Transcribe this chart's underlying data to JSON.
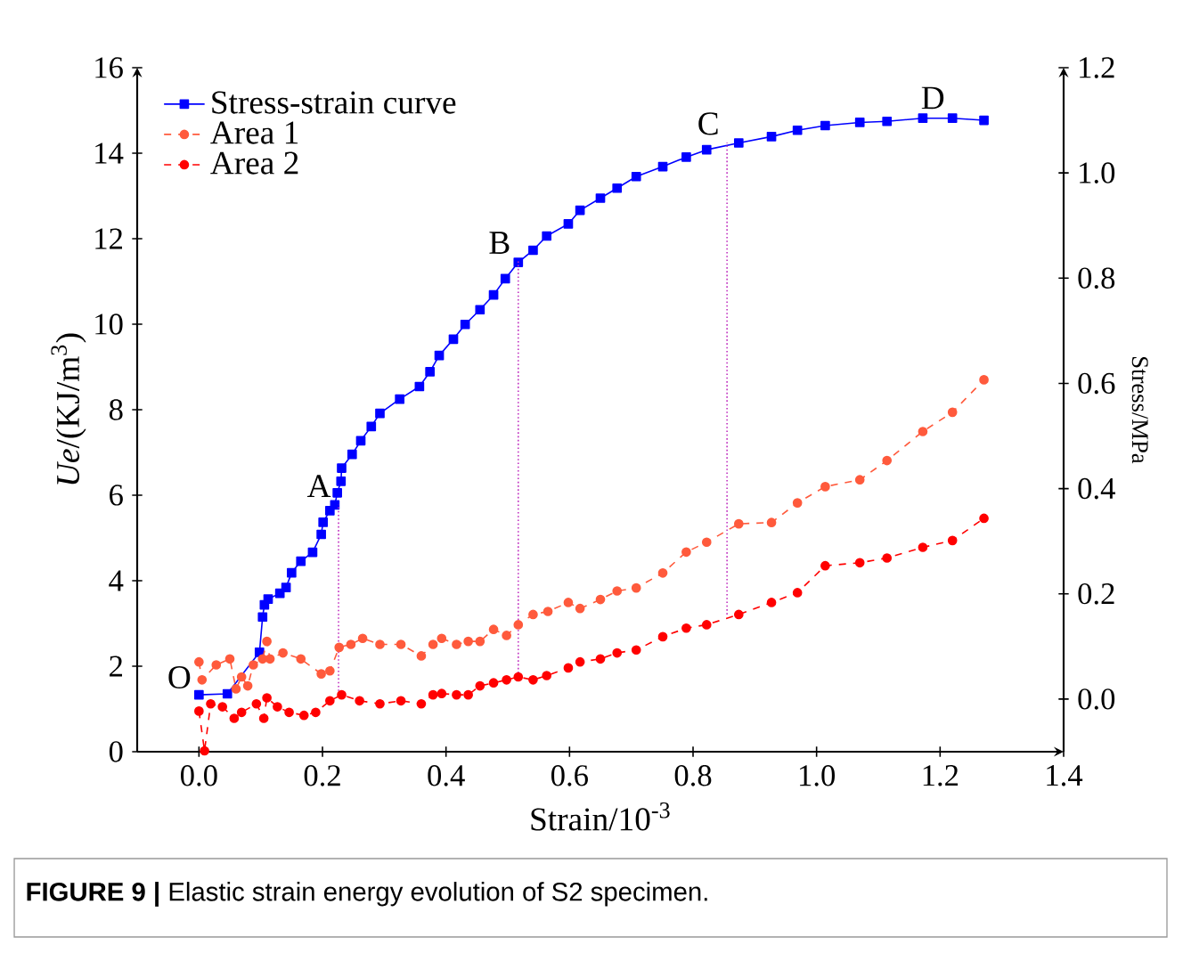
{
  "chart_data": {
    "type": "line",
    "xlabel": "Strain/10$^{-3}$",
    "ylabel": "*Ue*/(KJ/m$^{3}$)",
    "y2label": "Stress/MPa",
    "xlim": [
      -0.1,
      1.4
    ],
    "xticks": [
      {
        "value": 0,
        "label": "0.0"
      },
      {
        "value": 0.2,
        "label": "0.2"
      },
      {
        "value": 0.4,
        "label": "0.4"
      },
      {
        "value": 0.6,
        "label": "0.6"
      },
      {
        "value": 0.8,
        "label": "0.8"
      },
      {
        "value": 1.0,
        "label": "1.0"
      },
      {
        "value": 1.2,
        "label": "1.2"
      },
      {
        "value": 1.4,
        "label": "1.4"
      }
    ],
    "ylim": [
      0,
      16
    ],
    "yticks": [
      0,
      2,
      4,
      6,
      8,
      10,
      12,
      14,
      16
    ],
    "y2lim": [
      -0.1,
      1.2
    ],
    "y2ticks": [
      {
        "value": 0,
        "label": "0.0"
      },
      {
        "value": 0.2,
        "label": "0.2"
      },
      {
        "value": 0.4,
        "label": "0.4"
      },
      {
        "value": 0.6,
        "label": "0.6"
      },
      {
        "value": 0.8,
        "label": "0.8"
      },
      {
        "value": 1.0,
        "label": "1.0"
      },
      {
        "value": 1.2,
        "label": "1.2"
      }
    ],
    "legend": "top left",
    "series": [
      {
        "name": "Stress-strain curve",
        "axis": "y2",
        "color": "#0000ff",
        "marker": "square",
        "line_style": "solid",
        "x": [
          0.0,
          0.046,
          0.098,
          0.103,
          0.106,
          0.112,
          0.131,
          0.141,
          0.15,
          0.165,
          0.184,
          0.198,
          0.201,
          0.212,
          0.22,
          0.224,
          0.23,
          0.231,
          0.248,
          0.262,
          0.279,
          0.293,
          0.325,
          0.357,
          0.374,
          0.389,
          0.412,
          0.431,
          0.455,
          0.477,
          0.496,
          0.517,
          0.541,
          0.563,
          0.598,
          0.617,
          0.65,
          0.677,
          0.708,
          0.751,
          0.789,
          0.822,
          0.874,
          0.927,
          0.969,
          1.014,
          1.07,
          1.114,
          1.172,
          1.22,
          1.271
        ],
        "values": [
          0.008,
          0.01,
          0.089,
          0.156,
          0.179,
          0.19,
          0.201,
          0.212,
          0.24,
          0.262,
          0.279,
          0.313,
          0.336,
          0.358,
          0.369,
          0.392,
          0.414,
          0.439,
          0.465,
          0.491,
          0.518,
          0.543,
          0.57,
          0.594,
          0.622,
          0.653,
          0.684,
          0.712,
          0.74,
          0.768,
          0.799,
          0.83,
          0.853,
          0.88,
          0.903,
          0.929,
          0.952,
          0.971,
          0.993,
          1.012,
          1.03,
          1.044,
          1.057,
          1.069,
          1.081,
          1.09,
          1.096,
          1.098,
          1.104,
          1.104,
          1.1
        ]
      },
      {
        "name": "Area 1",
        "color": "#ff5a3c",
        "marker": "circle",
        "line_style": "dashed",
        "x": [
          0.0,
          0.005,
          0.028,
          0.05,
          0.06,
          0.069,
          0.079,
          0.088,
          0.103,
          0.11,
          0.115,
          0.136,
          0.165,
          0.198,
          0.212,
          0.227,
          0.246,
          0.265,
          0.293,
          0.327,
          0.36,
          0.379,
          0.393,
          0.417,
          0.436,
          0.455,
          0.477,
          0.498,
          0.517,
          0.541,
          0.565,
          0.598,
          0.617,
          0.65,
          0.677,
          0.708,
          0.751,
          0.789,
          0.822,
          0.874,
          0.927,
          0.969,
          1.014,
          1.07,
          1.114,
          1.172,
          1.22,
          1.271
        ],
        "values": [
          2.1,
          1.68,
          2.03,
          2.17,
          1.47,
          1.75,
          1.54,
          2.03,
          2.17,
          2.58,
          2.17,
          2.31,
          2.17,
          1.82,
          1.89,
          2.44,
          2.51,
          2.65,
          2.51,
          2.51,
          2.24,
          2.51,
          2.65,
          2.51,
          2.58,
          2.58,
          2.86,
          2.72,
          2.97,
          3.21,
          3.28,
          3.49,
          3.35,
          3.56,
          3.76,
          3.83,
          4.18,
          4.67,
          4.9,
          5.33,
          5.36,
          5.82,
          6.2,
          6.36,
          6.81,
          7.49,
          7.94,
          8.7
        ]
      },
      {
        "name": "Area 2",
        "color": "#ff0000",
        "marker": "circle",
        "line_style": "dashed",
        "x": [
          0.0,
          0.009,
          0.019,
          0.038,
          0.057,
          0.069,
          0.093,
          0.105,
          0.11,
          0.127,
          0.146,
          0.17,
          0.189,
          0.212,
          0.231,
          0.26,
          0.293,
          0.327,
          0.36,
          0.379,
          0.393,
          0.417,
          0.436,
          0.455,
          0.477,
          0.498,
          0.517,
          0.541,
          0.563,
          0.598,
          0.617,
          0.65,
          0.677,
          0.708,
          0.751,
          0.789,
          0.822,
          0.874,
          0.927,
          0.969,
          1.014,
          1.07,
          1.114,
          1.172,
          1.22,
          1.271
        ],
        "values": [
          0.95,
          0.02,
          1.12,
          1.05,
          0.78,
          0.92,
          1.12,
          0.78,
          1.26,
          1.05,
          0.92,
          0.85,
          0.92,
          1.19,
          1.33,
          1.19,
          1.12,
          1.19,
          1.12,
          1.33,
          1.36,
          1.33,
          1.33,
          1.54,
          1.61,
          1.68,
          1.75,
          1.68,
          1.78,
          1.96,
          2.1,
          2.17,
          2.31,
          2.38,
          2.69,
          2.89,
          2.97,
          3.21,
          3.49,
          3.72,
          4.35,
          4.42,
          4.53,
          4.78,
          4.94,
          5.46
        ]
      },
      {
        "color": "#c030c0",
        "marker": "none",
        "line_style": "dotted",
        "x": [
          0.226,
          0.226
        ],
        "values": [
          1.33,
          5.78
        ]
      },
      {
        "color": "#c030c0",
        "marker": "none",
        "line_style": "dotted",
        "x": [
          0.517,
          0.517
        ],
        "values": [
          1.75,
          11.47
        ]
      },
      {
        "color": "#c030c0",
        "marker": "none",
        "line_style": "dotted",
        "x": [
          0.855,
          0.855
        ],
        "values": [
          3.21,
          14.25
        ]
      }
    ],
    "annotations": [
      {
        "text": "O",
        "x": 0.0,
        "y": 1.3
      },
      {
        "text": "A",
        "x": 0.226,
        "y": 5.78
      },
      {
        "text": "B",
        "x": 0.517,
        "y": 11.47
      },
      {
        "text": "C",
        "x": 0.855,
        "y": 14.25
      },
      {
        "text": "D",
        "x": 1.22,
        "y": 14.86
      },
      "**FIGURE 9 |** Elastic strain energy evolution of S2 specimen."
    ]
  }
}
